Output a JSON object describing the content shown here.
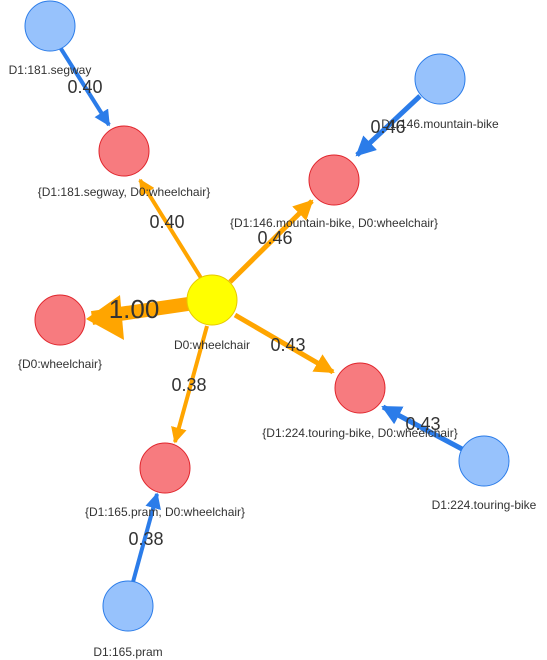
{
  "colors": {
    "center_fill": "#ffff00",
    "center_stroke": "#e6c800",
    "combo_fill": "#f77b7f",
    "combo_stroke": "#e0252c",
    "leaf_fill": "#97c2fc",
    "leaf_stroke": "#2b7ce9",
    "orange_edge": "#ffa500",
    "blue_edge": "#2b7ce9"
  },
  "nodes": {
    "center": {
      "label": "D0:wheelchair"
    },
    "self": {
      "label": "{D0:wheelchair}"
    },
    "segway_combo": {
      "label": "{D1:181.segway, D0:wheelchair}"
    },
    "mtb_combo": {
      "label": "{D1:146.mountain-bike, D0:wheelchair}"
    },
    "touring_combo": {
      "label": "{D1:224.touring-bike, D0:wheelchair}"
    },
    "pram_combo": {
      "label": "{D1:165.pram, D0:wheelchair}"
    },
    "segway": {
      "label": "D1:181.segway"
    },
    "mtb": {
      "label": "D1:146.mountain-bike"
    },
    "touring": {
      "label": "D1:224.touring-bike"
    },
    "pram": {
      "label": "D1:165.pram"
    }
  },
  "edges": {
    "center_to_self": {
      "label": "1.00"
    },
    "center_to_segway": {
      "label": "0.40"
    },
    "center_to_mtb": {
      "label": "0.46"
    },
    "center_to_touring": {
      "label": "0.43"
    },
    "center_to_pram": {
      "label": "0.38"
    },
    "segway_leaf": {
      "label": "0.40"
    },
    "mtb_leaf": {
      "label": "0.46"
    },
    "touring_leaf": {
      "label": "0.43"
    },
    "pram_leaf": {
      "label": "0.38"
    }
  }
}
